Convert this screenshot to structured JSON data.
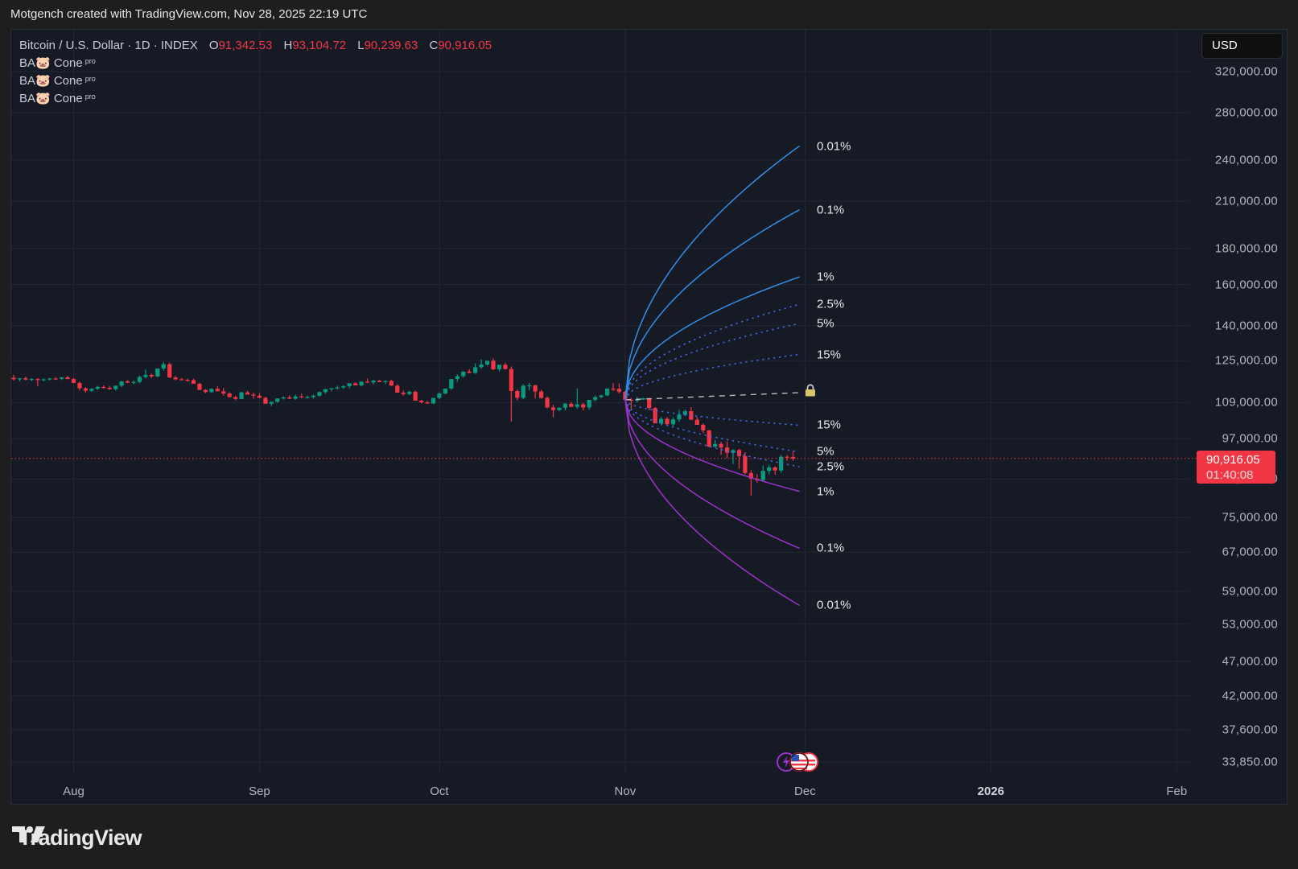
{
  "header": {
    "attribution": "Motgench created with TradingView.com, Nov 28, 2025 22:19 UTC"
  },
  "legend": {
    "symbol": "Bitcoin / U.S. Dollar · 1D · INDEX",
    "open_label": "O",
    "open": "91,342.53",
    "high_label": "H",
    "high": "93,104.72",
    "low_label": "L",
    "low": "90,239.63",
    "close_label": "C",
    "close": "90,916.05",
    "indicators": [
      {
        "name": "BA🐷 Cone",
        "badge": "pro"
      },
      {
        "name": "BA🐷 Cone",
        "badge": "pro"
      },
      {
        "name": "BA🐷 Cone",
        "badge": "pro"
      }
    ]
  },
  "currency_button": "USD",
  "price_tag": {
    "price": "90,916.05",
    "countdown": "01:40:08"
  },
  "colors": {
    "up": "#089981",
    "down": "#f23645",
    "upper_cone": "#2f8fe8",
    "lower_cone": "#9c33c9",
    "dotted": "#3d6ae0",
    "median": "#b8b8b8",
    "grid": "#232733",
    "background": "#161a25"
  },
  "cone_labels": {
    "upper": [
      "0.01%",
      "0.1%",
      "1%",
      "2.5%",
      "5%",
      "15%"
    ],
    "lower": [
      "15%",
      "5%",
      "2.5%",
      "1%",
      "0.1%",
      "0.01%"
    ]
  },
  "footer": {
    "brand": "TradingView"
  },
  "chart_data": {
    "type": "candlestick",
    "title": "Bitcoin / U.S. Dollar · 1D · INDEX",
    "ylabel": "USD",
    "yscale": "log",
    "ylim": [
      33850,
      320000
    ],
    "y_ticks": [
      "320,000.00",
      "280,000.00",
      "240,000.00",
      "210,000.00",
      "180,000.00",
      "160,000.00",
      "140,000.00",
      "125,000.00",
      "109,000.00",
      "97,000.00",
      "85,000.00",
      "75,000.00",
      "67,000.00",
      "59,000.00",
      "53,000.00",
      "47,000.00",
      "42,000.00",
      "37,600.00",
      "33,850.00"
    ],
    "y_tick_values": [
      320000,
      280000,
      240000,
      210000,
      180000,
      160000,
      140000,
      125000,
      109000,
      97000,
      85000,
      75000,
      67000,
      59000,
      53000,
      47000,
      42000,
      37600,
      33850
    ],
    "x_ticks": [
      "Aug",
      "Sep",
      "Oct",
      "Nov",
      "Dec",
      "2026",
      "Feb"
    ],
    "x_tick_days": [
      0,
      31,
      61,
      92,
      122,
      153,
      184
    ],
    "first_candle_day": -10,
    "last_price": 90916.05,
    "candles": [
      [
        118200,
        119300,
        117100,
        117600
      ],
      [
        117600,
        118100,
        116800,
        118000
      ],
      [
        118000,
        118600,
        117200,
        117500
      ],
      [
        117500,
        118000,
        116900,
        117700
      ],
      [
        117700,
        118100,
        115000,
        117300
      ],
      [
        117300,
        117900,
        116800,
        117600
      ],
      [
        117600,
        118100,
        117100,
        117900
      ],
      [
        117900,
        118400,
        117400,
        117800
      ],
      [
        117800,
        118300,
        117300,
        118400
      ],
      [
        118400,
        118900,
        117800,
        117700
      ],
      [
        117700,
        118200,
        116800,
        116200
      ],
      [
        116200,
        116700,
        113500,
        114200
      ],
      [
        114200,
        114600,
        112600,
        113300
      ],
      [
        113300,
        114300,
        112900,
        114000
      ],
      [
        114000,
        115100,
        113600,
        114700
      ],
      [
        114700,
        115300,
        114100,
        114400
      ],
      [
        114400,
        115100,
        113700,
        113900
      ],
      [
        113900,
        114600,
        113400,
        115200
      ],
      [
        115200,
        117000,
        114700,
        116800
      ],
      [
        116800,
        117300,
        116200,
        116300
      ],
      [
        116300,
        117200,
        115700,
        116600
      ],
      [
        116600,
        119000,
        116100,
        118500
      ],
      [
        118500,
        121400,
        117900,
        119300
      ],
      [
        119300,
        119800,
        118100,
        118700
      ],
      [
        118700,
        120500,
        118400,
        121800
      ],
      [
        121800,
        124500,
        121000,
        123500
      ],
      [
        123500,
        124200,
        118100,
        118300
      ],
      [
        118300,
        118900,
        117200,
        117600
      ],
      [
        117600,
        118100,
        117300,
        117400
      ],
      [
        117400,
        117900,
        116700,
        117300
      ],
      [
        117300,
        117800,
        116100,
        115900
      ],
      [
        115900,
        116300,
        114300,
        113600
      ],
      [
        113600,
        113900,
        112400,
        112800
      ],
      [
        112800,
        114200,
        112500,
        114000
      ],
      [
        114000,
        115000,
        113400,
        113100
      ],
      [
        113100,
        114400,
        111600,
        112300
      ],
      [
        112300,
        112700,
        110900,
        111000
      ],
      [
        111000,
        111400,
        109900,
        110300
      ],
      [
        110300,
        112900,
        110200,
        112700
      ],
      [
        112700,
        113300,
        112100,
        111900
      ],
      [
        111900,
        112600,
        110400,
        111500
      ],
      [
        111500,
        112500,
        110600,
        110700
      ],
      [
        110700,
        111100,
        109200,
        108600
      ],
      [
        108600,
        109000,
        107800,
        109300
      ],
      [
        109300,
        110500,
        108900,
        110500
      ],
      [
        110500,
        111200,
        110100,
        110900
      ],
      [
        110900,
        111600,
        110300,
        110400
      ],
      [
        110400,
        111900,
        110000,
        111200
      ],
      [
        111200,
        112200,
        110700,
        110900
      ],
      [
        110900,
        111500,
        110500,
        111000
      ],
      [
        111000,
        111800,
        110400,
        111500
      ],
      [
        111500,
        113000,
        111100,
        112800
      ],
      [
        112800,
        113300,
        112200,
        113900
      ],
      [
        113900,
        114300,
        113100,
        114200
      ],
      [
        114200,
        115200,
        113800,
        114500
      ],
      [
        114500,
        115300,
        114000,
        115000
      ],
      [
        115000,
        115500,
        114200,
        116100
      ],
      [
        116100,
        116500,
        115500,
        115300
      ],
      [
        115300,
        116800,
        114900,
        116700
      ],
      [
        116700,
        117900,
        116300,
        116400
      ],
      [
        116400,
        117300,
        115700,
        117100
      ],
      [
        117100,
        117300,
        116500,
        116600
      ],
      [
        116600,
        117100,
        115800,
        117000
      ],
      [
        117000,
        117400,
        116100,
        115200
      ],
      [
        115200,
        115700,
        113000,
        112600
      ],
      [
        112600,
        113400,
        111400,
        112100
      ],
      [
        112100,
        113400,
        111700,
        112900
      ],
      [
        112900,
        113400,
        109800,
        109700
      ],
      [
        109700,
        110000,
        108700,
        109100
      ],
      [
        109100,
        109600,
        108600,
        108700
      ],
      [
        108700,
        110600,
        108500,
        110700
      ],
      [
        110700,
        112700,
        110300,
        112300
      ],
      [
        112300,
        113100,
        112000,
        114100
      ],
      [
        114100,
        114800,
        113700,
        117700
      ],
      [
        117700,
        119500,
        116600,
        118800
      ],
      [
        118800,
        120500,
        118200,
        120600
      ],
      [
        120600,
        121500,
        119900,
        120100
      ],
      [
        120100,
        123900,
        119700,
        122300
      ],
      [
        122300,
        125500,
        121700,
        123400
      ],
      [
        123400,
        124700,
        122900,
        124900
      ],
      [
        124900,
        126000,
        121100,
        121500
      ],
      [
        121500,
        123000,
        120600,
        123300
      ],
      [
        123300,
        124200,
        121400,
        121600
      ],
      [
        121600,
        122600,
        102500,
        113200
      ],
      [
        113200,
        113900,
        109800,
        110700
      ],
      [
        110700,
        115800,
        110200,
        115200
      ],
      [
        115200,
        116200,
        113400,
        115300
      ],
      [
        115300,
        115600,
        110500,
        113000
      ],
      [
        113000,
        113600,
        110400,
        110700
      ],
      [
        110700,
        111200,
        107000,
        107300
      ],
      [
        107300,
        108300,
        103900,
        106400
      ],
      [
        106400,
        107400,
        106100,
        107200
      ],
      [
        107200,
        108900,
        106300,
        108600
      ],
      [
        108600,
        109200,
        107700,
        107500
      ],
      [
        107500,
        114100,
        106800,
        108400
      ],
      [
        108400,
        108900,
        106200,
        107300
      ],
      [
        107300,
        110000,
        106500,
        110000
      ],
      [
        110000,
        111600,
        109500,
        111000
      ],
      [
        111000,
        111800,
        110600,
        111600
      ],
      [
        111600,
        114100,
        111300,
        114100
      ],
      [
        114100,
        116100,
        113100,
        114000
      ],
      [
        114000,
        116000,
        112300,
        112900
      ],
      [
        112900,
        113300,
        110000,
        110000
      ],
      [
        110000,
        110700,
        106300,
        109700
      ],
      [
        109700,
        111100,
        109100,
        110100
      ],
      [
        110100,
        110700,
        110000,
        110600
      ],
      [
        110600,
        110800,
        106300,
        107100
      ],
      [
        107100,
        107400,
        103800,
        101900
      ],
      [
        101900,
        104000,
        101200,
        103400
      ],
      [
        103400,
        104000,
        101300,
        101600
      ],
      [
        101600,
        103900,
        101000,
        103200
      ],
      [
        103200,
        106500,
        102400,
        104800
      ],
      [
        104800,
        106600,
        104300,
        106000
      ],
      [
        106000,
        107400,
        103400,
        103100
      ],
      [
        103100,
        104100,
        101500,
        101400
      ],
      [
        101400,
        101900,
        98700,
        99600
      ],
      [
        99600,
        99700,
        94200,
        94500
      ],
      [
        94500,
        96500,
        94100,
        95300
      ],
      [
        95300,
        96000,
        92000,
        94200
      ],
      [
        94200,
        96100,
        91000,
        92600
      ],
      [
        92600,
        93700,
        89300,
        93400
      ],
      [
        93400,
        93800,
        87900,
        91600
      ],
      [
        91600,
        92800,
        86300,
        86700
      ],
      [
        86700,
        87500,
        80600,
        85100
      ],
      [
        85100,
        86400,
        84000,
        84700
      ],
      [
        84700,
        88900,
        84600,
        87300
      ],
      [
        87300,
        89000,
        86300,
        88300
      ],
      [
        88300,
        88600,
        86200,
        87400
      ],
      [
        87400,
        91900,
        86800,
        91400
      ],
      [
        91400,
        91900,
        90200,
        91300
      ],
      [
        91342.53,
        93104.72,
        90239.63,
        90916.05
      ]
    ],
    "cone": {
      "origin_day": 92,
      "end_day": 121,
      "origin_price": 110000,
      "median_end": 112600,
      "upper_end_prices": {
        "0.01%": 251000,
        "0.1%": 204000,
        "1%": 164000,
        "2.5%": 150000,
        "5%": 141000,
        "15%": 127500
      },
      "lower_end_prices": {
        "15%": 101300,
        "5%": 92900,
        "2.5%": 88500,
        "1%": 81700,
        "0.1%": 67900,
        "0.01%": 56400
      },
      "solid_levels": [
        "0.01%",
        "0.1%",
        "1%"
      ],
      "dotted_levels": [
        "2.5%",
        "5%",
        "15%"
      ]
    }
  }
}
